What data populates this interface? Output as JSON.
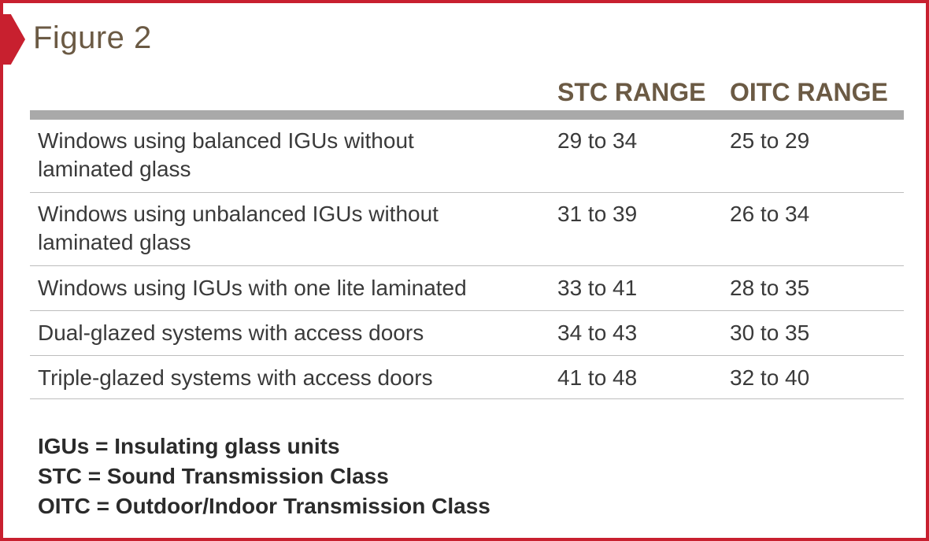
{
  "figure": {
    "title": "Figure 2"
  },
  "table": {
    "columns": [
      "",
      "STC RANGE",
      "OITC RANGE"
    ],
    "rows": [
      {
        "label": "Windows using balanced IGUs without laminated glass",
        "stc": "29 to 34",
        "oitc": "25 to 29"
      },
      {
        "label": "Windows using unbalanced IGUs without laminated glass",
        "stc": "31 to 39",
        "oitc": "26 to 34"
      },
      {
        "label": "Windows using IGUs with one lite laminated",
        "stc": "33 to 41",
        "oitc": "28 to 35"
      },
      {
        "label": "Dual-glazed systems with access doors",
        "stc": "34 to 43",
        "oitc": "30 to 35"
      },
      {
        "label": "Triple-glazed systems with access doors",
        "stc": "41 to 48",
        "oitc": "32 to 40"
      }
    ]
  },
  "legend": [
    "IGUs = Insulating glass units",
    "STC = Sound Transmission Class",
    "OITC = Outdoor/Indoor Transmission Class"
  ],
  "colors": {
    "frame": "#c8202f",
    "heading": "#6b5a44",
    "rule": "#a9a9a9"
  }
}
